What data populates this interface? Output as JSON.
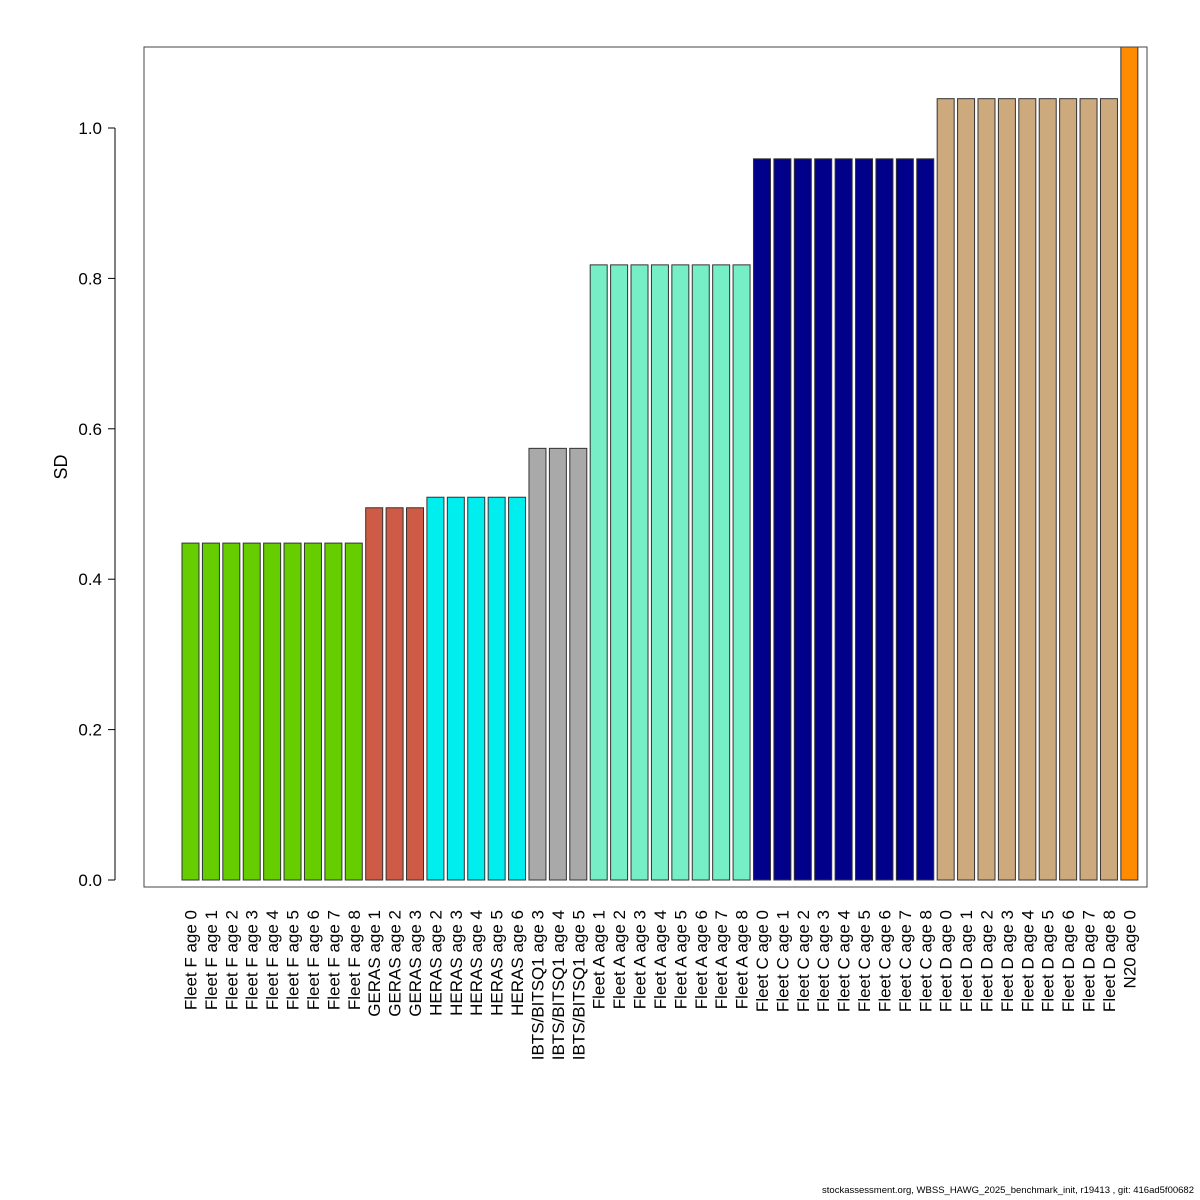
{
  "chart_data": {
    "type": "bar",
    "title": "",
    "xlabel": "",
    "ylabel": "SD",
    "ylim": [
      0,
      1.108
    ],
    "yticks": [
      "0.0",
      "0.2",
      "0.4",
      "0.6",
      "0.8",
      "1.0"
    ],
    "ytick_values": [
      0,
      0.2,
      0.4,
      0.6,
      0.8,
      1.0
    ],
    "grid": false,
    "categories": [
      "Fleet F age 0",
      "Fleet F age 1",
      "Fleet F age 2",
      "Fleet F age 3",
      "Fleet F age 4",
      "Fleet F age 5",
      "Fleet F age 6",
      "Fleet F age 7",
      "Fleet F age 8",
      "GERAS age 1",
      "GERAS age 2",
      "GERAS age 3",
      "HERAS age 2",
      "HERAS age 3",
      "HERAS age 4",
      "HERAS age 5",
      "HERAS age 6",
      "IBTS/BITSQ1 age 3",
      "IBTS/BITSQ1 age 4",
      "IBTS/BITSQ1 age 5",
      "Fleet A age 1",
      "Fleet A age 2",
      "Fleet A age 3",
      "Fleet A age 4",
      "Fleet A age 5",
      "Fleet A age 6",
      "Fleet A age 7",
      "Fleet A age 8",
      "Fleet C age 0",
      "Fleet C age 1",
      "Fleet C age 2",
      "Fleet C age 3",
      "Fleet C age 4",
      "Fleet C age 5",
      "Fleet C age 6",
      "Fleet C age 7",
      "Fleet C age 8",
      "Fleet D age 0",
      "Fleet D age 1",
      "Fleet D age 2",
      "Fleet D age 3",
      "Fleet D age 4",
      "Fleet D age 5",
      "Fleet D age 6",
      "Fleet D age 7",
      "Fleet D age 8",
      "N20 age 0"
    ],
    "values": [
      0.448,
      0.448,
      0.448,
      0.448,
      0.448,
      0.448,
      0.448,
      0.448,
      0.448,
      0.495,
      0.495,
      0.495,
      0.509,
      0.509,
      0.509,
      0.509,
      0.509,
      0.574,
      0.574,
      0.574,
      0.818,
      0.818,
      0.818,
      0.818,
      0.818,
      0.818,
      0.818,
      0.818,
      0.959,
      0.959,
      0.959,
      0.959,
      0.959,
      0.959,
      0.959,
      0.959,
      0.959,
      1.039,
      1.039,
      1.039,
      1.039,
      1.039,
      1.039,
      1.039,
      1.039,
      1.039,
      1.108
    ],
    "group_colors": {
      "Fleet F": "#66CD00",
      "GERAS": "#CD5B45",
      "HERAS": "#00EEEE",
      "IBTS/BITSQ1": "#A9A9A9",
      "Fleet A": "#76EEC6",
      "Fleet C": "#00008B",
      "Fleet D": "#CDAA7D",
      "N20": "#FF8C00"
    }
  },
  "footer": "stockassessment.org, WBSS_HAWG_2025_benchmark_init, r19413 , git: 416ad5f00682"
}
